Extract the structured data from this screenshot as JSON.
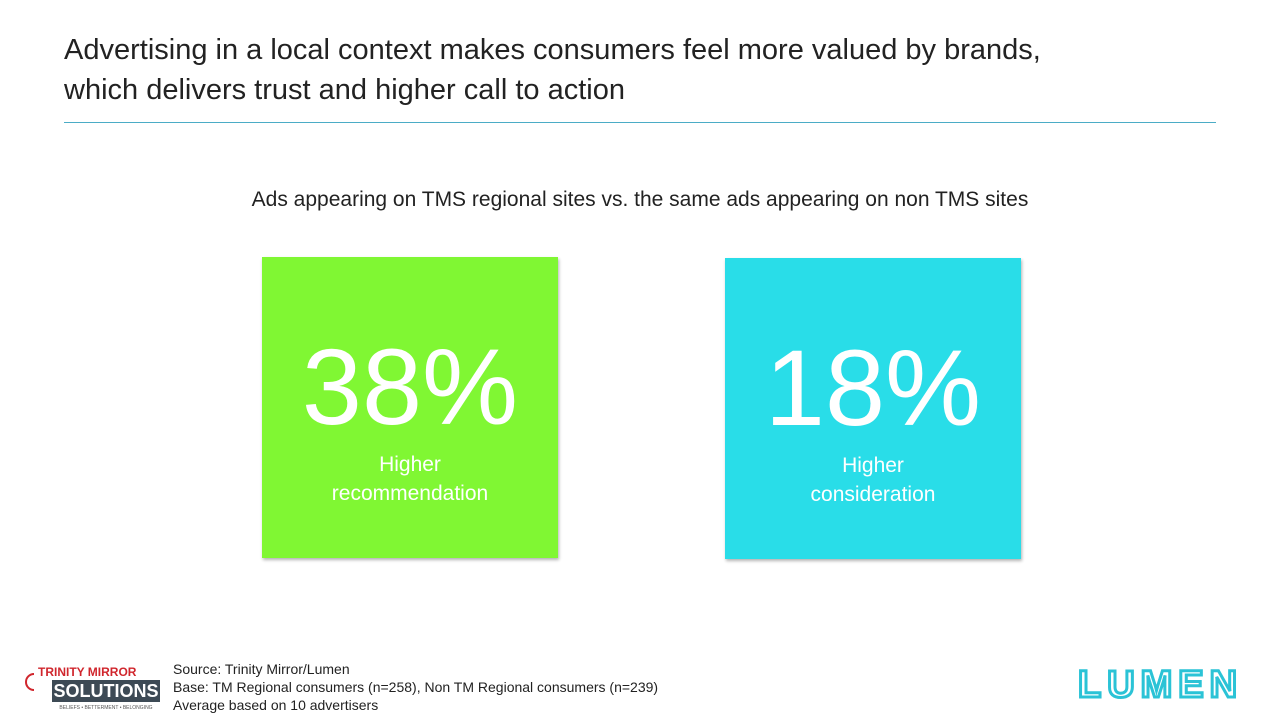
{
  "header": {
    "title_lines": [
      "Advertising in a local context makes consumers feel more valued by brands,",
      "which delivers trust and higher call to action"
    ]
  },
  "subtitle": "Ads appearing on TMS regional sites vs. the same ads appearing on non TMS sites",
  "cards": [
    {
      "value": "38%",
      "label_lines": [
        "Higher",
        "recommendation"
      ],
      "color": "#80f733"
    },
    {
      "value": "18%",
      "label_lines": [
        "Higher",
        "consideration"
      ],
      "color": "#29dde8"
    }
  ],
  "footer": {
    "notes": [
      "Source: Trinity Mirror/Lumen",
      "Base: TM Regional consumers (n=258), Non TM Regional consumers (n=239)",
      "Average based on 10 advertisers"
    ]
  },
  "logos": {
    "left": {
      "top": "TRINITY MIRROR",
      "main": "SOLUTIONS",
      "tagline": "BELIEFS • BETTERMENT • BELONGING"
    },
    "right": "LUMEN"
  }
}
